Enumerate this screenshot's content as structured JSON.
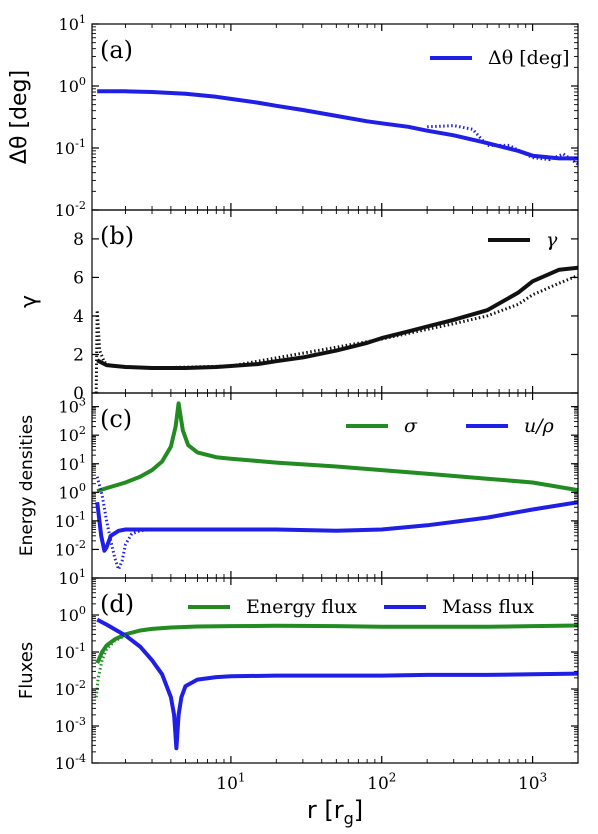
{
  "chart_data": [
    {
      "id": "a",
      "panel_label": "(a)",
      "type": "line",
      "ylabel": "Δθ [deg]",
      "yscale": "log",
      "ylim": [
        0.01,
        10
      ],
      "yticks": [
        {
          "value": 10,
          "base": "10",
          "exp": "1"
        },
        {
          "value": 1,
          "base": "10",
          "exp": "0"
        },
        {
          "value": 0.1,
          "base": "10",
          "exp": "-1"
        },
        {
          "value": 0.01,
          "base": "10",
          "exp": "-2"
        }
      ],
      "legend_position": "top-right",
      "series": [
        {
          "name": "Δθ [deg]",
          "color": "#1f1fe6",
          "style": "solid",
          "x": [
            1.3,
            2,
            3,
            5,
            8,
            10,
            15,
            20,
            30,
            50,
            80,
            100,
            150,
            200,
            300,
            500,
            800,
            1000,
            1500,
            2000
          ],
          "y": [
            0.82,
            0.82,
            0.8,
            0.75,
            0.67,
            0.62,
            0.54,
            0.48,
            0.41,
            0.33,
            0.27,
            0.25,
            0.22,
            0.19,
            0.16,
            0.12,
            0.09,
            0.075,
            0.068,
            0.068
          ]
        },
        {
          "name": "",
          "color": "#1f1fe6",
          "style": "dotted",
          "x": [
            200,
            300,
            400,
            500,
            700,
            1000,
            1300,
            1600,
            2000
          ],
          "y": [
            0.22,
            0.23,
            0.2,
            0.11,
            0.11,
            0.07,
            0.065,
            0.08,
            0.055
          ]
        }
      ]
    },
    {
      "id": "b",
      "panel_label": "(b)",
      "type": "line",
      "ylabel": "γ",
      "yscale": "linear",
      "ylim": [
        0,
        9.5
      ],
      "yticks": [
        {
          "value": 0,
          "text": "0"
        },
        {
          "value": 2,
          "text": "2"
        },
        {
          "value": 4,
          "text": "4"
        },
        {
          "value": 6,
          "text": "6"
        },
        {
          "value": 8,
          "text": "8"
        }
      ],
      "legend_position": "top-right",
      "series": [
        {
          "name": "γ",
          "color": "#111111",
          "style": "solid",
          "x": [
            1.3,
            1.5,
            2,
            3,
            5,
            8,
            10,
            15,
            20,
            30,
            50,
            80,
            100,
            150,
            200,
            300,
            500,
            800,
            1000,
            1500,
            2000
          ],
          "y": [
            1.7,
            1.45,
            1.35,
            1.3,
            1.3,
            1.35,
            1.4,
            1.5,
            1.65,
            1.85,
            2.2,
            2.6,
            2.85,
            3.2,
            3.45,
            3.8,
            4.3,
            5.2,
            5.8,
            6.4,
            6.5
          ]
        },
        {
          "name": "",
          "color": "#111111",
          "style": "dotted",
          "x": [
            1.28,
            1.3,
            1.35,
            1.45,
            1.6,
            2,
            3,
            10,
            100,
            300,
            500,
            800,
            1000,
            1500,
            2000
          ],
          "y": [
            0,
            4.3,
            2.2,
            1.6,
            1.4,
            1.35,
            1.3,
            1.4,
            2.8,
            3.6,
            4.0,
            4.6,
            5.1,
            5.7,
            6.1
          ]
        }
      ]
    },
    {
      "id": "c",
      "panel_label": "(c)",
      "type": "line",
      "ylabel": "Energy densities",
      "yscale": "log",
      "ylim": [
        0.001,
        3000
      ],
      "yticks": [
        {
          "value": 1000,
          "base": "10",
          "exp": "3"
        },
        {
          "value": 100,
          "base": "10",
          "exp": "2"
        },
        {
          "value": 10,
          "base": "10",
          "exp": "1"
        },
        {
          "value": 1,
          "base": "10",
          "exp": "0"
        },
        {
          "value": 0.1,
          "base": "10",
          "exp": "-1"
        },
        {
          "value": 0.01,
          "base": "10",
          "exp": "-2"
        }
      ],
      "legend_position": "top-right",
      "series": [
        {
          "name": "σ",
          "color": "#228b22",
          "style": "solid",
          "x": [
            1.3,
            1.5,
            2,
            2.5,
            3,
            3.5,
            4,
            4.3,
            4.5,
            4.8,
            5.2,
            6,
            8,
            10,
            20,
            50,
            100,
            200,
            500,
            1000,
            2000
          ],
          "y": [
            1.1,
            1.4,
            2.2,
            3.5,
            6,
            12,
            40,
            200,
            1300,
            150,
            45,
            25,
            17,
            15,
            11,
            8,
            6,
            4.5,
            3,
            2.2,
            1.2
          ]
        },
        {
          "name": "u/ρ",
          "color": "#1f1fe6",
          "style": "solid",
          "x": [
            1.3,
            1.38,
            1.45,
            1.5,
            1.6,
            1.8,
            2,
            3,
            5,
            10,
            20,
            50,
            100,
            200,
            500,
            1000,
            2000
          ],
          "y": [
            0.45,
            0.03,
            0.009,
            0.012,
            0.03,
            0.045,
            0.05,
            0.05,
            0.05,
            0.05,
            0.05,
            0.045,
            0.05,
            0.07,
            0.13,
            0.25,
            0.45
          ]
        },
        {
          "name": "",
          "color": "#1f1fe6",
          "style": "dotted",
          "x": [
            1.3,
            1.4,
            1.5,
            1.6,
            1.7,
            1.8,
            1.9,
            2.0,
            2.2,
            2.5,
            3.0
          ],
          "y": [
            3.5,
            0.8,
            0.1,
            0.02,
            0.005,
            0.002,
            0.004,
            0.015,
            0.035,
            0.045,
            0.05
          ]
        }
      ]
    },
    {
      "id": "d",
      "panel_label": "(d)",
      "type": "line",
      "ylabel": "Fluxes",
      "yscale": "log",
      "ylim": [
        0.0001,
        10
      ],
      "yticks": [
        {
          "value": 10,
          "base": "10",
          "exp": "1"
        },
        {
          "value": 1,
          "base": "10",
          "exp": "0"
        },
        {
          "value": 0.1,
          "base": "10",
          "exp": "-1"
        },
        {
          "value": 0.01,
          "base": "10",
          "exp": "-2"
        },
        {
          "value": 0.001,
          "base": "10",
          "exp": "-3"
        },
        {
          "value": 0.0001,
          "base": "10",
          "exp": "-4"
        }
      ],
      "legend_position": "top",
      "series": [
        {
          "name": "Energy flux",
          "color": "#228b22",
          "style": "solid",
          "x": [
            1.3,
            1.4,
            1.5,
            1.7,
            2,
            2.5,
            3,
            4,
            6,
            10,
            20,
            50,
            100,
            200,
            500,
            1000,
            2000
          ],
          "y": [
            0.05,
            0.1,
            0.15,
            0.22,
            0.3,
            0.38,
            0.42,
            0.46,
            0.49,
            0.5,
            0.51,
            0.5,
            0.48,
            0.48,
            0.48,
            0.5,
            0.52
          ]
        },
        {
          "name": "Mass flux",
          "color": "#1f1fe6",
          "style": "solid",
          "x": [
            1.3,
            1.5,
            2,
            2.5,
            3,
            3.5,
            4,
            4.2,
            4.35,
            4.5,
            4.7,
            5,
            6,
            8,
            10,
            20,
            50,
            100,
            200,
            500,
            1000,
            2000
          ],
          "y": [
            0.75,
            0.55,
            0.28,
            0.14,
            0.06,
            0.025,
            0.006,
            0.002,
            0.00025,
            0.002,
            0.006,
            0.012,
            0.018,
            0.021,
            0.022,
            0.023,
            0.023,
            0.023,
            0.024,
            0.024,
            0.025,
            0.026
          ]
        },
        {
          "name": "",
          "color": "#228b22",
          "style": "dotted",
          "x": [
            1.28,
            1.32,
            1.4,
            1.5,
            1.7,
            2.0
          ],
          "y": [
            0.006,
            0.02,
            0.06,
            0.12,
            0.2,
            0.28
          ]
        }
      ]
    }
  ],
  "x_axis": {
    "label_main": "r [r",
    "label_sub": "g",
    "label_close": "]",
    "xscale": "log",
    "xlim": [
      1.2,
      2000
    ],
    "xticks": [
      {
        "value": 10,
        "base": "10",
        "exp": "1"
      },
      {
        "value": 100,
        "base": "10",
        "exp": "2"
      },
      {
        "value": 1000,
        "base": "10",
        "exp": "3"
      }
    ]
  }
}
